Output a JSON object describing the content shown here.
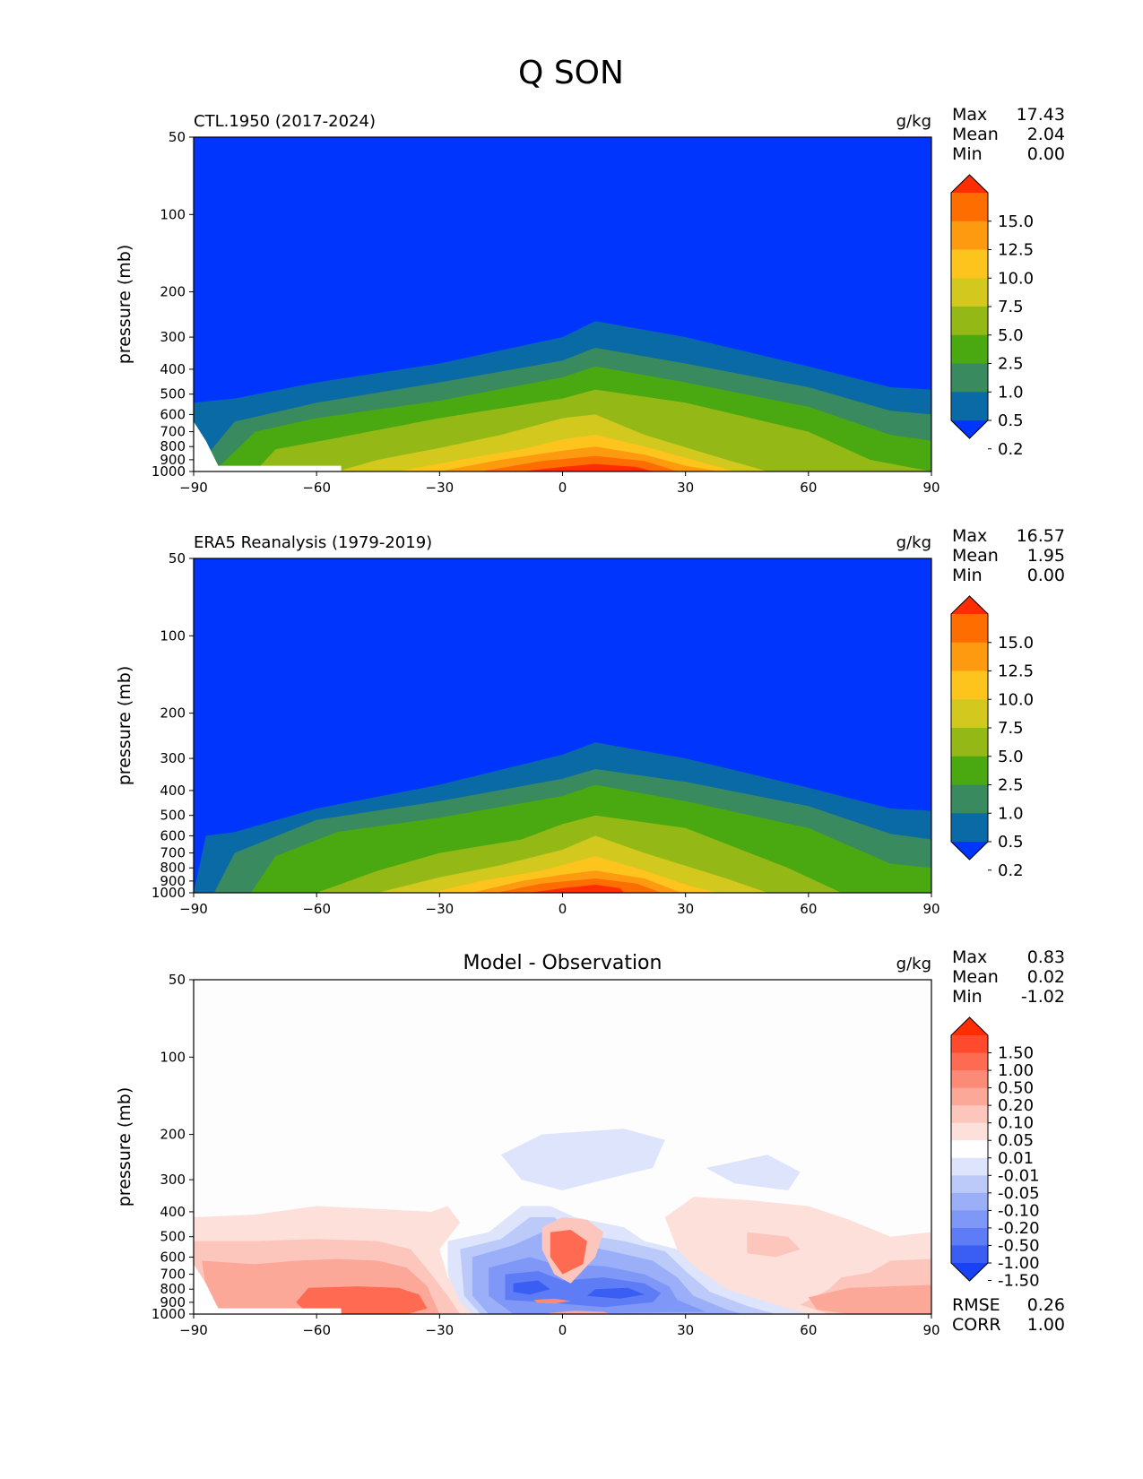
{
  "figure": {
    "title": "Q SON"
  },
  "chart_data": [
    {
      "type": "contour",
      "id": "p1",
      "title": "CTL.1950 (2017-2024)",
      "units": "g/kg",
      "xlabel": "",
      "ylabel": "pressure (mb)",
      "xlim": [
        -90,
        90
      ],
      "ylim": [
        1000,
        50
      ],
      "xticks": [
        "-90",
        "-60",
        "-30",
        "0",
        "30",
        "60",
        "90"
      ],
      "yticks": [
        "50",
        "100",
        "200",
        "300",
        "400",
        "500",
        "600",
        "700",
        "800",
        "900",
        "1000"
      ],
      "stats": [
        {
          "label": "Max",
          "value": "17.43"
        },
        {
          "label": "Mean",
          "value": "2.04"
        },
        {
          "label": "Min",
          "value": "0.00"
        }
      ],
      "colorbar": {
        "labels": [
          "15.0",
          "12.5",
          "10.0",
          "7.5",
          "5.0",
          "2.5",
          "1.0",
          "0.5",
          "0.2"
        ],
        "colors": [
          "#ff2d00",
          "#fe6d00",
          "#fd9a10",
          "#fdc41e",
          "#d3c81e",
          "#94b916",
          "#4aa810",
          "#3a8a60",
          "#0a6aa6",
          "#0035fd"
        ]
      },
      "levels": [
        0.2,
        0.5,
        1.0,
        2.5,
        5.0,
        7.5,
        10.0,
        12.5,
        15.0
      ],
      "level_tops_mb": [
        {
          "level": 0.2,
          "x": [
            -90,
            -80,
            -60,
            -30,
            0,
            8,
            30,
            60,
            80,
            90
          ],
          "p": [
            540,
            520,
            450,
            380,
            300,
            260,
            300,
            390,
            470,
            480
          ]
        },
        {
          "level": 0.5,
          "x": [
            -90,
            -80,
            -60,
            -30,
            0,
            8,
            30,
            60,
            80,
            90
          ],
          "p": [
            999,
            640,
            540,
            450,
            370,
            330,
            380,
            470,
            580,
            600
          ]
        },
        {
          "level": 1.0,
          "x": [
            -85,
            -75,
            -60,
            -30,
            0,
            8,
            30,
            60,
            80,
            90
          ],
          "p": [
            999,
            700,
            620,
            530,
            430,
            390,
            450,
            560,
            720,
            760
          ]
        },
        {
          "level": 2.5,
          "x": [
            -75,
            -70,
            -55,
            -30,
            0,
            8,
            30,
            60,
            75,
            90
          ],
          "p": [
            999,
            820,
            740,
            620,
            520,
            480,
            540,
            700,
            900,
            999
          ]
        },
        {
          "level": 5.0,
          "x": [
            -55,
            -45,
            -30,
            -15,
            0,
            8,
            20,
            40,
            50
          ],
          "p": [
            999,
            900,
            810,
            720,
            620,
            600,
            720,
            900,
            999
          ]
        },
        {
          "level": 7.5,
          "x": [
            -40,
            -25,
            -10,
            0,
            8,
            20,
            35,
            42
          ],
          "p": [
            999,
            900,
            820,
            750,
            720,
            800,
            930,
            999
          ]
        },
        {
          "level": 10.0,
          "x": [
            -30,
            -15,
            0,
            8,
            20,
            30,
            38
          ],
          "p": [
            999,
            900,
            830,
            800,
            860,
            950,
            999
          ]
        },
        {
          "level": 12.5,
          "x": [
            -20,
            -5,
            8,
            20,
            28
          ],
          "p": [
            999,
            910,
            870,
            910,
            999
          ]
        },
        {
          "level": 15.0,
          "x": [
            -10,
            0,
            8,
            18,
            22
          ],
          "p": [
            999,
            960,
            935,
            960,
            999
          ]
        }
      ]
    },
    {
      "type": "contour",
      "id": "p2",
      "title": "ERA5 Reanalysis (1979-2019)",
      "units": "g/kg",
      "xlabel": "",
      "ylabel": "pressure (mb)",
      "xlim": [
        -90,
        90
      ],
      "ylim": [
        1000,
        50
      ],
      "xticks": [
        "-90",
        "-60",
        "-30",
        "0",
        "30",
        "60",
        "90"
      ],
      "yticks": [
        "50",
        "100",
        "200",
        "300",
        "400",
        "500",
        "600",
        "700",
        "800",
        "900",
        "1000"
      ],
      "stats": [
        {
          "label": "Max",
          "value": "16.57"
        },
        {
          "label": "Mean",
          "value": "1.95"
        },
        {
          "label": "Min",
          "value": "0.00"
        }
      ],
      "colorbar": {
        "labels": [
          "15.0",
          "12.5",
          "10.0",
          "7.5",
          "5.0",
          "2.5",
          "1.0",
          "0.5",
          "0.2"
        ],
        "colors": [
          "#ff2d00",
          "#fe6d00",
          "#fd9a10",
          "#fdc41e",
          "#d3c81e",
          "#94b916",
          "#4aa810",
          "#3a8a60",
          "#0a6aa6",
          "#0035fd"
        ]
      },
      "levels": [
        0.2,
        0.5,
        1.0,
        2.5,
        5.0,
        7.5,
        10.0,
        12.5,
        15.0
      ],
      "level_tops_mb": [
        {
          "level": 0.2,
          "x": [
            -90,
            -87,
            -80,
            -60,
            -30,
            0,
            8,
            30,
            60,
            80,
            90
          ],
          "p": [
            999,
            600,
            580,
            470,
            380,
            290,
            260,
            300,
            390,
            470,
            480
          ]
        },
        {
          "level": 0.5,
          "x": [
            -85,
            -80,
            -60,
            -30,
            0,
            8,
            30,
            60,
            80,
            90
          ],
          "p": [
            999,
            700,
            520,
            440,
            360,
            330,
            370,
            460,
            590,
            620
          ]
        },
        {
          "level": 1.0,
          "x": [
            -76,
            -70,
            -55,
            -30,
            0,
            8,
            30,
            60,
            80,
            90
          ],
          "p": [
            999,
            720,
            580,
            510,
            420,
            380,
            440,
            560,
            770,
            800
          ]
        },
        {
          "level": 2.5,
          "x": [
            -60,
            -45,
            -30,
            -10,
            0,
            8,
            30,
            55,
            68
          ],
          "p": [
            999,
            820,
            700,
            620,
            540,
            500,
            560,
            800,
            999
          ]
        },
        {
          "level": 5.0,
          "x": [
            -45,
            -30,
            -15,
            0,
            8,
            20,
            40,
            50
          ],
          "p": [
            999,
            870,
            780,
            680,
            600,
            700,
            880,
            999
          ]
        },
        {
          "level": 7.5,
          "x": [
            -32,
            -20,
            -5,
            8,
            20,
            32,
            38
          ],
          "p": [
            999,
            900,
            820,
            720,
            820,
            950,
            999
          ]
        },
        {
          "level": 10.0,
          "x": [
            -22,
            -10,
            0,
            8,
            20,
            29
          ],
          "p": [
            999,
            900,
            850,
            820,
            880,
            999
          ]
        },
        {
          "level": 12.5,
          "x": [
            -16,
            -5,
            8,
            18,
            24
          ],
          "p": [
            999,
            920,
            880,
            920,
            999
          ]
        },
        {
          "level": 15.0,
          "x": [
            -8,
            0,
            8,
            14,
            15
          ],
          "p": [
            999,
            960,
            930,
            960,
            999
          ]
        }
      ]
    },
    {
      "type": "contour",
      "id": "p3",
      "title": "Model - Observation",
      "units": "g/kg",
      "xlabel": "",
      "ylabel": "pressure (mb)",
      "xlim": [
        -90,
        90
      ],
      "ylim": [
        1000,
        50
      ],
      "xticks": [
        "-90",
        "-60",
        "-30",
        "0",
        "30",
        "60",
        "90"
      ],
      "yticks": [
        "50",
        "100",
        "200",
        "300",
        "400",
        "500",
        "600",
        "700",
        "800",
        "900",
        "1000"
      ],
      "stats": [
        {
          "label": "Max",
          "value": "0.83"
        },
        {
          "label": "Mean",
          "value": "0.02"
        },
        {
          "label": "Min",
          "value": "-1.02"
        }
      ],
      "extra_stats": [
        {
          "label": "RMSE",
          "value": "0.26"
        },
        {
          "label": "CORR",
          "value": "1.00"
        }
      ],
      "colorbar": {
        "labels": [
          "1.50",
          "1.00",
          "0.50",
          "0.20",
          "0.10",
          "0.05",
          "0.01",
          "-0.01",
          "-0.05",
          "-0.10",
          "-0.20",
          "-0.50",
          "-1.00",
          "-1.50"
        ],
        "colors": [
          "#ff2d00",
          "#ff4a2e",
          "#fe6a52",
          "#fb8a76",
          "#fba898",
          "#fcc6bc",
          "#fde0da",
          "#ffffff",
          "#dde4fb",
          "#bccafa",
          "#9aaff8",
          "#7f98f7",
          "#5d7cf5",
          "#3a5ef4",
          "#1a42f5"
        ]
      }
    }
  ]
}
